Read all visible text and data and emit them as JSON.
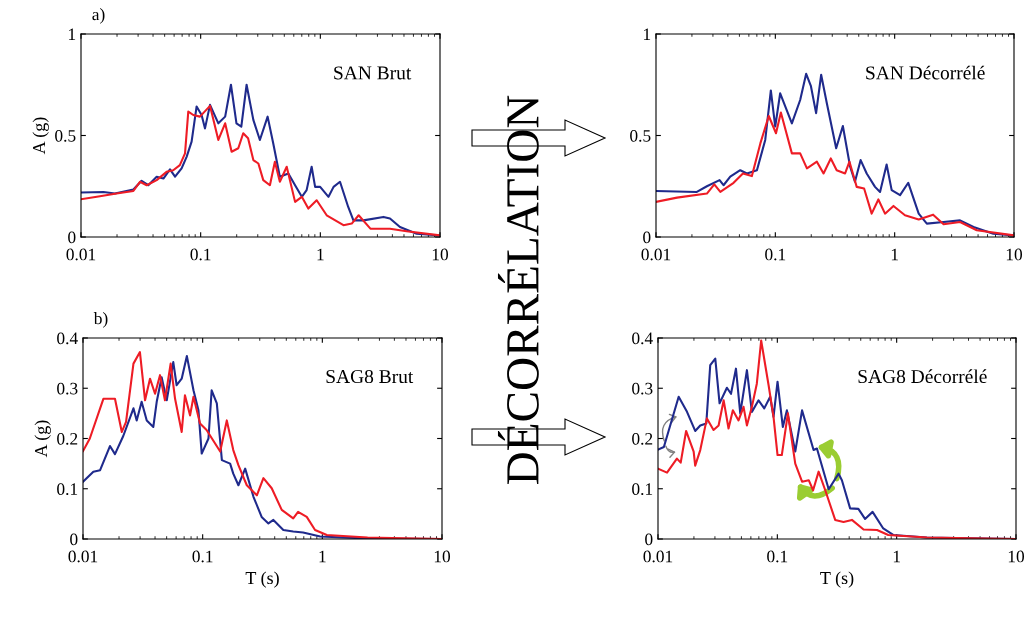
{
  "chart_data": [
    {
      "type": "line",
      "title": "a)",
      "ylabel": "A (g)",
      "log": "x",
      "xlim": [
        0.01,
        10
      ],
      "xticks": [
        0.01,
        0.1,
        1,
        10
      ],
      "ylim": [
        0,
        1
      ],
      "yticks": [
        0,
        0.5,
        1
      ],
      "grid": false,
      "legend": false,
      "annotations": [
        "SAN Brut"
      ],
      "series": [
        {
          "color": "#1f2a8c",
          "x": [
            0.01,
            0.0154,
            0.0192,
            0.0274,
            0.0321,
            0.0365,
            0.0429,
            0.0488,
            0.0554,
            0.0611,
            0.0693,
            0.0763,
            0.084,
            0.0925,
            0.1018,
            0.1087,
            0.1197,
            0.1405,
            0.1602,
            0.1791,
            0.1991,
            0.2186,
            0.242,
            0.2755,
            0.3124,
            0.3627,
            0.4042,
            0.4589,
            0.5405,
            0.6151,
            0.7006,
            0.768,
            0.846,
            0.9045,
            0.9968,
            1.17,
            1.29,
            1.46,
            1.71,
            1.89,
            2.29,
            3.37,
            3.82,
            4.63,
            6.38,
            10
          ],
          "values": [
            0.219,
            0.222,
            0.214,
            0.234,
            0.277,
            0.255,
            0.297,
            0.288,
            0.333,
            0.297,
            0.338,
            0.395,
            0.47,
            0.643,
            0.601,
            0.535,
            0.651,
            0.56,
            0.593,
            0.75,
            0.56,
            0.544,
            0.75,
            0.577,
            0.478,
            0.593,
            0.461,
            0.297,
            0.313,
            0.255,
            0.198,
            0.231,
            0.346,
            0.247,
            0.247,
            0.198,
            0.247,
            0.272,
            0.148,
            0.082,
            0.082,
            0.099,
            0.091,
            0.049,
            0.016,
            0.007
          ]
        },
        {
          "color": "#ee1c25",
          "x": [
            0.01,
            0.0144,
            0.0198,
            0.0274,
            0.0311,
            0.0354,
            0.0429,
            0.0519,
            0.059,
            0.067,
            0.074,
            0.0788,
            0.0868,
            0.0986,
            0.1197,
            0.1405,
            0.1602,
            0.1814,
            0.2063,
            0.2268,
            0.249,
            0.2755,
            0.3035,
            0.3335,
            0.379,
            0.4171,
            0.4589,
            0.5237,
            0.6151,
            0.7006,
            0.7934,
            0.932,
            1.13,
            1.56,
            1.83,
            2.09,
            2.62,
            3.82,
            5.26,
            10
          ],
          "values": [
            0.186,
            0.201,
            0.214,
            0.227,
            0.272,
            0.255,
            0.28,
            0.321,
            0.329,
            0.354,
            0.412,
            0.618,
            0.601,
            0.593,
            0.646,
            0.478,
            0.56,
            0.42,
            0.437,
            0.511,
            0.486,
            0.379,
            0.362,
            0.28,
            0.255,
            0.371,
            0.272,
            0.346,
            0.173,
            0.198,
            0.14,
            0.181,
            0.107,
            0.058,
            0.066,
            0.107,
            0.041,
            0.041,
            0.028,
            0.008
          ]
        }
      ]
    },
    {
      "type": "line",
      "log": "x",
      "xlim": [
        0.01,
        10
      ],
      "xticks": [
        0.01,
        0.1,
        1,
        10
      ],
      "ylim": [
        0,
        1
      ],
      "yticks": [
        0,
        0.5,
        1
      ],
      "grid": false,
      "legend": false,
      "annotations": [
        "SAN Décorrélé",
        "DÉCORRÉLATION"
      ],
      "series": [
        {
          "color": "#1f2a8c",
          "x": [
            0.01,
            0.022,
            0.0267,
            0.0341,
            0.0368,
            0.0419,
            0.0508,
            0.0578,
            0.0701,
            0.0823,
            0.0917,
            0.0998,
            0.1098,
            0.1376,
            0.1615,
            0.1813,
            0.1984,
            0.2196,
            0.2421,
            0.2701,
            0.3235,
            0.368,
            0.4235,
            0.4647,
            0.5187,
            0.5829,
            0.6846,
            0.7543,
            0.8562,
            0.9438,
            1.11,
            1.3,
            1.59,
            1.86,
            2.57,
            3.53,
            4.58,
            6.71,
            10
          ],
          "values": [
            0.227,
            0.222,
            0.25,
            0.28,
            0.255,
            0.297,
            0.329,
            0.313,
            0.329,
            0.478,
            0.722,
            0.544,
            0.708,
            0.56,
            0.675,
            0.804,
            0.745,
            0.61,
            0.799,
            0.659,
            0.437,
            0.547,
            0.346,
            0.272,
            0.379,
            0.313,
            0.247,
            0.222,
            0.357,
            0.231,
            0.206,
            0.267,
            0.115,
            0.066,
            0.074,
            0.082,
            0.049,
            0.016,
            0.007
          ]
        },
        {
          "color": "#ee1c25",
          "x": [
            0.01,
            0.015,
            0.0267,
            0.0308,
            0.0346,
            0.0447,
            0.0535,
            0.0636,
            0.0749,
            0.0881,
            0.1013,
            0.1113,
            0.1376,
            0.1615,
            0.184,
            0.2229,
            0.2535,
            0.2916,
            0.3266,
            0.3843,
            0.418,
            0.4807,
            0.5546,
            0.6416,
            0.7301,
            0.8303,
            0.9774,
            1.22,
            1.59,
            2.1,
            2.57,
            3.53,
            4.88,
            10
          ],
          "values": [
            0.173,
            0.194,
            0.214,
            0.259,
            0.222,
            0.267,
            0.313,
            0.3,
            0.461,
            0.596,
            0.511,
            0.613,
            0.412,
            0.412,
            0.338,
            0.371,
            0.313,
            0.387,
            0.329,
            0.313,
            0.371,
            0.247,
            0.239,
            0.115,
            0.185,
            0.115,
            0.153,
            0.107,
            0.086,
            0.11,
            0.063,
            0.074,
            0.033,
            0.008
          ]
        }
      ]
    },
    {
      "type": "line",
      "title": "b)",
      "xlabel": "T (s)",
      "ylabel": "A (g)",
      "log": "x",
      "xlim": [
        0.01,
        10
      ],
      "xticks": [
        0.01,
        0.1,
        1,
        10
      ],
      "ylim": [
        0,
        0.4
      ],
      "yticks": [
        0,
        0.1,
        0.2,
        0.3,
        0.4
      ],
      "grid": false,
      "legend": false,
      "annotations": [
        "SAG8 Brut"
      ],
      "series": [
        {
          "color": "#1f2a8c",
          "x": [
            0.01,
            0.0122,
            0.0139,
            0.0168,
            0.0185,
            0.0217,
            0.0264,
            0.0281,
            0.0309,
            0.0341,
            0.0387,
            0.0413,
            0.0454,
            0.0501,
            0.0568,
            0.0606,
            0.0668,
            0.0738,
            0.0838,
            0.0922,
            0.0982,
            0.1118,
            0.1189,
            0.1313,
            0.1447,
            0.1696,
            0.1802,
            0.1989,
            0.2266,
            0.2658,
            0.311,
            0.3543,
            0.3899,
            0.4722,
            0.5712,
            0.6906,
            0.9594,
            2.39,
            10
          ],
          "values": [
            0.114,
            0.134,
            0.137,
            0.185,
            0.169,
            0.205,
            0.26,
            0.236,
            0.273,
            0.236,
            0.223,
            0.273,
            0.322,
            0.276,
            0.352,
            0.306,
            0.319,
            0.364,
            0.296,
            0.256,
            0.17,
            0.2,
            0.296,
            0.27,
            0.157,
            0.15,
            0.13,
            0.107,
            0.14,
            0.084,
            0.044,
            0.031,
            0.038,
            0.018,
            0.015,
            0.013,
            0.005,
            0.001,
            0
          ]
        },
        {
          "color": "#ee1c25",
          "x": [
            0.01,
            0.0114,
            0.0148,
            0.0185,
            0.0211,
            0.0229,
            0.0264,
            0.0299,
            0.033,
            0.0363,
            0.04,
            0.044,
            0.0484,
            0.054,
            0.0588,
            0.0668,
            0.0711,
            0.0785,
            0.0838,
            0.0951,
            0.1078,
            0.1401,
            0.1591,
            0.1802,
            0.1989,
            0.2338,
            0.2837,
            0.3218,
            0.3776,
            0.4579,
            0.5712,
            0.6272,
            0.7408,
            0.8693,
            1.09,
            2.39,
            10
          ],
          "values": [
            0.175,
            0.2,
            0.279,
            0.279,
            0.213,
            0.233,
            0.349,
            0.372,
            0.276,
            0.319,
            0.289,
            0.326,
            0.276,
            0.349,
            0.279,
            0.213,
            0.286,
            0.246,
            0.283,
            0.23,
            0.217,
            0.174,
            0.236,
            0.177,
            0.147,
            0.107,
            0.087,
            0.121,
            0.101,
            0.058,
            0.041,
            0.054,
            0.044,
            0.018,
            0.008,
            0.003,
            0
          ]
        }
      ]
    },
    {
      "type": "line",
      "xlabel": "T (s)",
      "log": "x",
      "xlim": [
        0.01,
        10
      ],
      "xticks": [
        0.01,
        0.1,
        1,
        10
      ],
      "ylim": [
        0,
        0.4
      ],
      "yticks": [
        0,
        0.1,
        0.2,
        0.3,
        0.4
      ],
      "grid": false,
      "legend": false,
      "annotations": [
        "SAG8 Décorrélé"
      ],
      "series": [
        {
          "color": "#1f2a8c",
          "x": [
            0.01,
            0.0112,
            0.0149,
            0.0175,
            0.0205,
            0.0226,
            0.0254,
            0.0274,
            0.0302,
            0.0328,
            0.0378,
            0.0409,
            0.045,
            0.0489,
            0.0556,
            0.0612,
            0.0696,
            0.0777,
            0.0871,
            0.0929,
            0.1004,
            0.1112,
            0.1203,
            0.1413,
            0.1611,
            0.2012,
            0.2147,
            0.2694,
            0.3261,
            0.3476,
            0.4074,
            0.4777,
            0.5432,
            0.6286,
            0.7719,
            0.9357,
            1.79,
            10
          ],
          "values": [
            0.178,
            0.183,
            0.283,
            0.253,
            0.215,
            0.226,
            0.23,
            0.346,
            0.359,
            0.27,
            0.301,
            0.289,
            0.339,
            0.25,
            0.336,
            0.253,
            0.276,
            0.26,
            0.283,
            0.243,
            0.313,
            0.223,
            0.256,
            0.174,
            0.256,
            0.177,
            0.18,
            0.099,
            0.13,
            0.117,
            0.061,
            0.06,
            0.04,
            0.054,
            0.021,
            0.008,
            0.003,
            0
          ]
        },
        {
          "color": "#ee1c25",
          "x": [
            0.01,
            0.0119,
            0.0144,
            0.0155,
            0.0172,
            0.0199,
            0.0205,
            0.0226,
            0.0257,
            0.0292,
            0.0322,
            0.0355,
            0.039,
            0.0424,
            0.0473,
            0.0521,
            0.0556,
            0.0612,
            0.0673,
            0.0732,
            0.0845,
            0.0929,
            0.1004,
            0.109,
            0.1226,
            0.1413,
            0.1611,
            0.1833,
            0.1994,
            0.2218,
            0.2521,
            0.3054,
            0.3587,
            0.4216,
            0.5279,
            0.6846,
            0.8502,
            1.79,
            10
          ],
          "values": [
            0.14,
            0.132,
            0.16,
            0.152,
            0.215,
            0.174,
            0.146,
            0.177,
            0.24,
            0.217,
            0.226,
            0.276,
            0.22,
            0.256,
            0.236,
            0.263,
            0.226,
            0.263,
            0.309,
            0.395,
            0.306,
            0.243,
            0.167,
            0.167,
            0.25,
            0.15,
            0.114,
            0.117,
            0.097,
            0.134,
            0.097,
            0.038,
            0.034,
            0.038,
            0.019,
            0.018,
            0.008,
            0.003,
            0
          ]
        }
      ]
    }
  ]
}
